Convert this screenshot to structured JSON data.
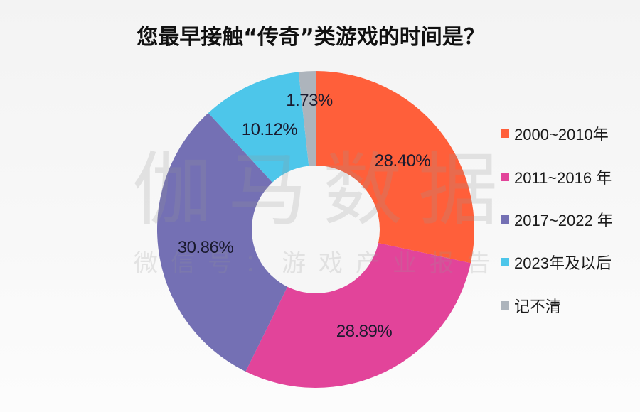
{
  "title": "您最早接触“传奇”类游戏的时间是？",
  "watermark": {
    "main": "伽马数据",
    "sub": "微信号：游戏产业报告"
  },
  "colors": {
    "orange": "#FF5F3A",
    "pink": "#E2449A",
    "purple": "#7470B4",
    "cyan": "#4DC6EA",
    "grey": "#ADB4BC",
    "hole": "#F6F6F6"
  },
  "legend": [
    {
      "label": "2000~2010年",
      "color": "#FF5F3A"
    },
    {
      "label": "2011~2016 年",
      "color": "#E2449A"
    },
    {
      "label": "2017~2022 年",
      "color": "#7470B4"
    },
    {
      "label": "2023年及以后",
      "color": "#4DC6EA"
    },
    {
      "label": "记不清",
      "color": "#ADB4BC"
    }
  ],
  "slice_labels": [
    "28.40%",
    "28.89%",
    "30.86%",
    "10.12%",
    "1.73%"
  ],
  "chart_data": {
    "type": "pie",
    "variant": "donut",
    "title": "您最早接触“传奇”类游戏的时间是？",
    "categories": [
      "2000~2010年",
      "2011~2016 年",
      "2017~2022 年",
      "2023年及以后",
      "记不清"
    ],
    "values": [
      28.4,
      28.89,
      30.86,
      10.12,
      1.73
    ],
    "unit": "%",
    "colors": [
      "#FF5F3A",
      "#E2449A",
      "#7470B4",
      "#4DC6EA",
      "#ADB4BC"
    ],
    "start_angle": "12 o'clock",
    "direction": "clockwise",
    "legend_position": "right",
    "data_labels": [
      "28.40%",
      "28.89%",
      "30.86%",
      "10.12%",
      "1.73%"
    ]
  }
}
